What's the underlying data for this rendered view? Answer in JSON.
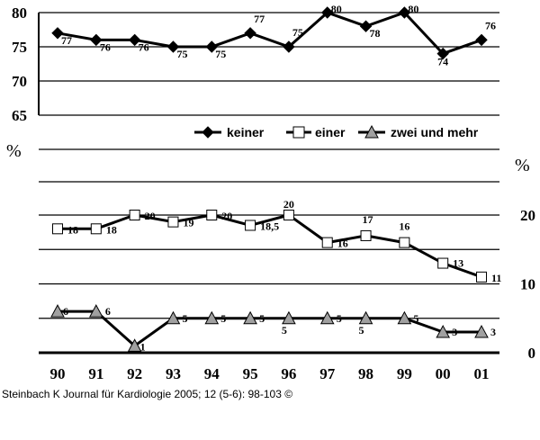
{
  "chart_data": {
    "type": "line",
    "categories": [
      "90",
      "91",
      "92",
      "93",
      "94",
      "95",
      "96",
      "97",
      "98",
      "99",
      "00",
      "01"
    ],
    "series": [
      {
        "name": "keiner",
        "marker": "diamond",
        "color": "#000000",
        "values": [
          77,
          76,
          76,
          75,
          75,
          77,
          75,
          80,
          78,
          80,
          74,
          76
        ],
        "labels": [
          "77",
          "76",
          "76",
          "75",
          "75",
          "77",
          "75",
          "80",
          "78",
          "80",
          "74",
          "76"
        ]
      },
      {
        "name": "einer",
        "marker": "square",
        "color": "#ffffff",
        "values": [
          18,
          18,
          20,
          19,
          20,
          18.5,
          20,
          16,
          17,
          16,
          13,
          11
        ],
        "labels": [
          "18",
          "18",
          "20",
          "19",
          "20",
          "18,5",
          "20",
          "16",
          "17",
          "16",
          "13",
          "11"
        ]
      },
      {
        "name": "zwei und mehr",
        "marker": "triangle",
        "color": "#a0a0a0",
        "values": [
          6,
          6,
          1,
          5,
          5,
          5,
          5,
          5,
          5,
          5,
          3,
          3
        ],
        "labels": [
          "6",
          "6",
          "1",
          "5",
          "5",
          "5",
          "5",
          "5",
          "5",
          "5",
          "3",
          "3"
        ]
      }
    ],
    "upper_axis": {
      "ticks": [
        "80",
        "75",
        "70",
        "65"
      ],
      "unit": "%",
      "ylim": [
        65,
        80
      ]
    },
    "lower_axis": {
      "ticks": [
        "20",
        "10",
        "0"
      ],
      "unit": "%",
      "ylim": [
        0,
        20
      ]
    },
    "grid": true,
    "legend_position": "middle-right"
  },
  "footer": "Steinbach K Journal für Kardiologie 2005; 12 (5-6): 98-103 ©"
}
